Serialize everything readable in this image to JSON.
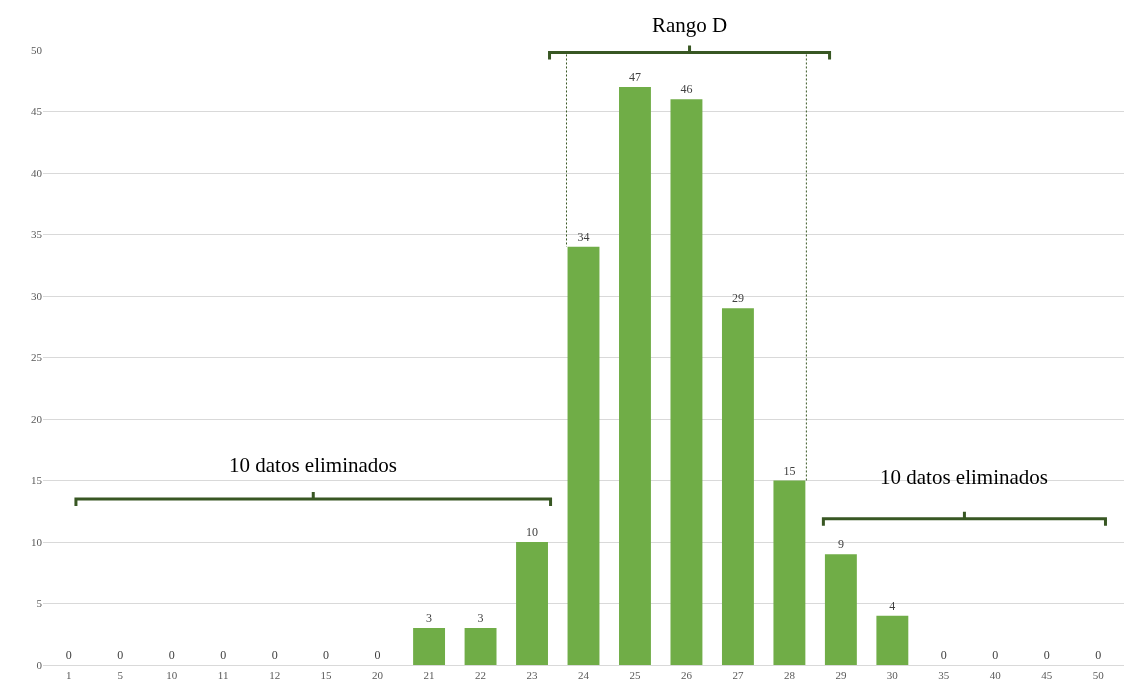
{
  "chart_data": {
    "type": "bar",
    "categories": [
      "1",
      "5",
      "10",
      "11",
      "12",
      "15",
      "20",
      "21",
      "22",
      "23",
      "24",
      "25",
      "26",
      "27",
      "28",
      "29",
      "30",
      "35",
      "40",
      "45",
      "50"
    ],
    "values": [
      0,
      0,
      0,
      0,
      0,
      0,
      0,
      3,
      3,
      10,
      34,
      47,
      46,
      29,
      15,
      9,
      4,
      0,
      0,
      0,
      0
    ],
    "color": "#70ad47",
    "ylim": [
      0,
      50
    ],
    "yticks": [
      0,
      5,
      10,
      15,
      20,
      25,
      30,
      35,
      40,
      45,
      50
    ],
    "grid": "y",
    "data_labels": true,
    "legend": false,
    "annotations": [
      "Rango D",
      "10 datos eliminados",
      "10 datos eliminados"
    ]
  }
}
